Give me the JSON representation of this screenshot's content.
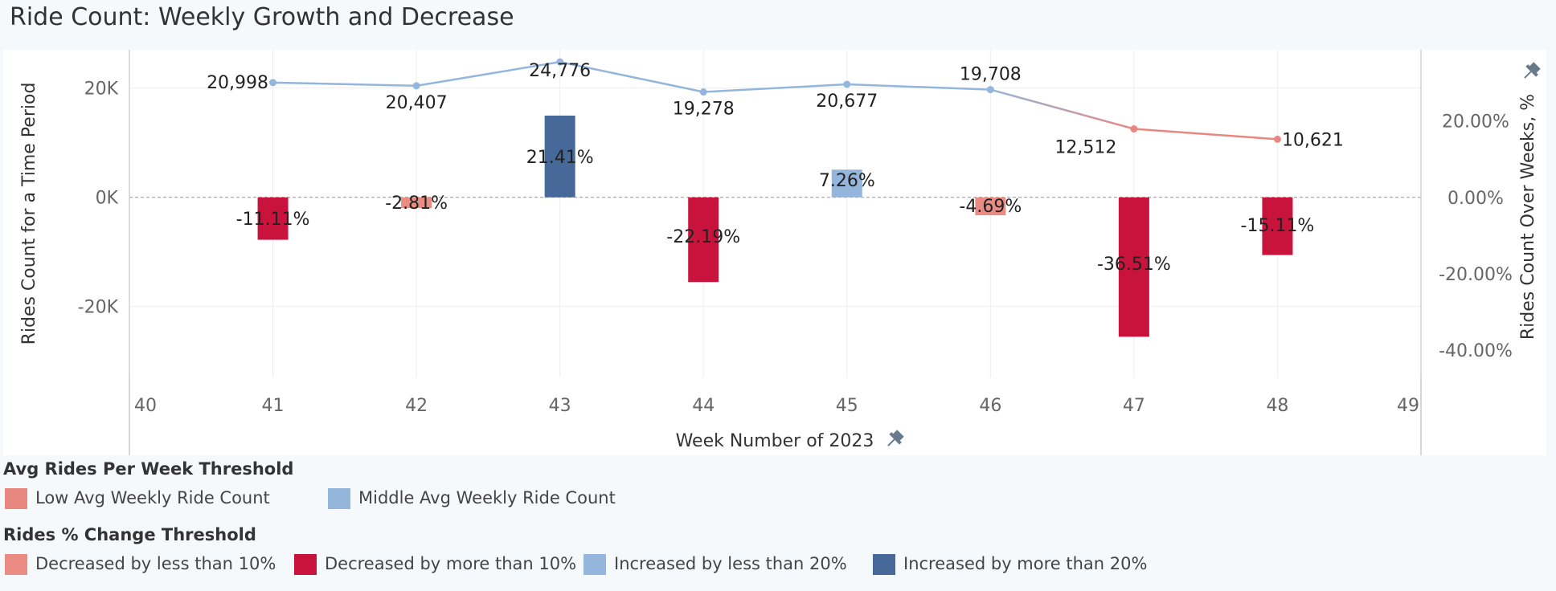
{
  "title": "Ride Count: Weekly Growth and Decrease",
  "chart_data": {
    "type": "bar+line",
    "xlabel": "Week Number of 2023",
    "ylabel_left": "Rides Count for a Time Period",
    "ylabel_right": "Rides Count Over Weeks, %",
    "x_ticks": [
      "40",
      "41",
      "42",
      "43",
      "44",
      "45",
      "46",
      "47",
      "48",
      "49"
    ],
    "xlim": [
      40,
      49
    ],
    "left_ylim": [
      -33000,
      27000
    ],
    "left_ticks": [
      {
        "value": 20000,
        "label": "20K"
      },
      {
        "value": 0,
        "label": "0K"
      },
      {
        "value": -20000,
        "label": "-20K"
      }
    ],
    "right_ylim": [
      -47.16,
      38.65
    ],
    "right_ticks": [
      {
        "value": 20,
        "label": "20.00%"
      },
      {
        "value": 0,
        "label": "0.00%"
      },
      {
        "value": -20,
        "label": "-20.00%"
      },
      {
        "value": -40,
        "label": "-40.00%"
      }
    ],
    "line": {
      "x": [
        41,
        42,
        43,
        44,
        45,
        46,
        47,
        48
      ],
      "values": [
        20998,
        20407,
        24776,
        19278,
        20677,
        19708,
        12512,
        10621
      ],
      "labels": [
        "20,998",
        "20,407",
        "24,776",
        "19,278",
        "20,677",
        "19,708",
        "12,512",
        "10,621"
      ],
      "category": [
        "Middle",
        "Middle",
        "Middle",
        "Middle",
        "Middle",
        "Middle",
        "Low",
        "Low"
      ]
    },
    "bars": {
      "x": [
        41,
        42,
        43,
        44,
        45,
        46,
        47,
        48
      ],
      "values": [
        -11.11,
        -2.81,
        21.41,
        -22.19,
        7.26,
        -4.69,
        -36.51,
        -15.11
      ],
      "labels": [
        "-11.11%",
        "-2.81%",
        "21.41%",
        "-22.19%",
        "7.26%",
        "-4.69%",
        "-36.51%",
        "-15.11%"
      ],
      "category": [
        "dec_more_10",
        "dec_less_10",
        "inc_more_20",
        "dec_more_10",
        "inc_less_20",
        "dec_less_10",
        "dec_more_10",
        "dec_more_10"
      ]
    },
    "colors": {
      "Low": "#e8877f",
      "Middle": "#94b6dc",
      "dec_less_10": "#eb8c84",
      "dec_more_10": "#c8143c",
      "inc_less_20": "#94b6dc",
      "inc_more_20": "#46699a"
    },
    "grid": true
  },
  "legend1": {
    "title": "Avg Rides Per Week Threshold",
    "items": [
      {
        "label": "Low Avg Weekly Ride Count",
        "color": "#e8877f"
      },
      {
        "label": "Middle Avg Weekly Ride Count",
        "color": "#94b6dc"
      }
    ]
  },
  "legend2": {
    "title": "Rides % Change Threshold",
    "items": [
      {
        "label": "Decreased by less than 10%",
        "color": "#eb8c84"
      },
      {
        "label": "Decreased by more than 10%",
        "color": "#c8143c"
      },
      {
        "label": "Increased by less than 20%",
        "color": "#94b6dc"
      },
      {
        "label": "Increased by more than 20%",
        "color": "#46699a"
      }
    ]
  }
}
